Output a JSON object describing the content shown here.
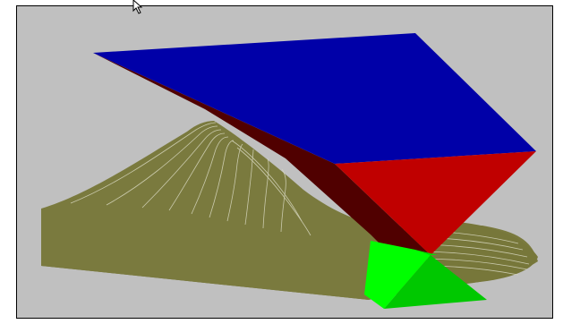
{
  "scene": {
    "background": "#c0c0c0",
    "frame_border": "#000000",
    "colors": {
      "plane_top": "#0000a8",
      "plane_side_dark": "#500000",
      "plane_front_red": "#c00000",
      "terrain_fill": "#7a7a3e",
      "terrain_shade": "#6a6a30",
      "terrain_lines": "#d8d8c0",
      "green_bright": "#00ff00",
      "green_mid": "#00d000",
      "green_dark": "#00a800"
    },
    "icons": {
      "cursor": "mouse-pointer-icon"
    }
  }
}
